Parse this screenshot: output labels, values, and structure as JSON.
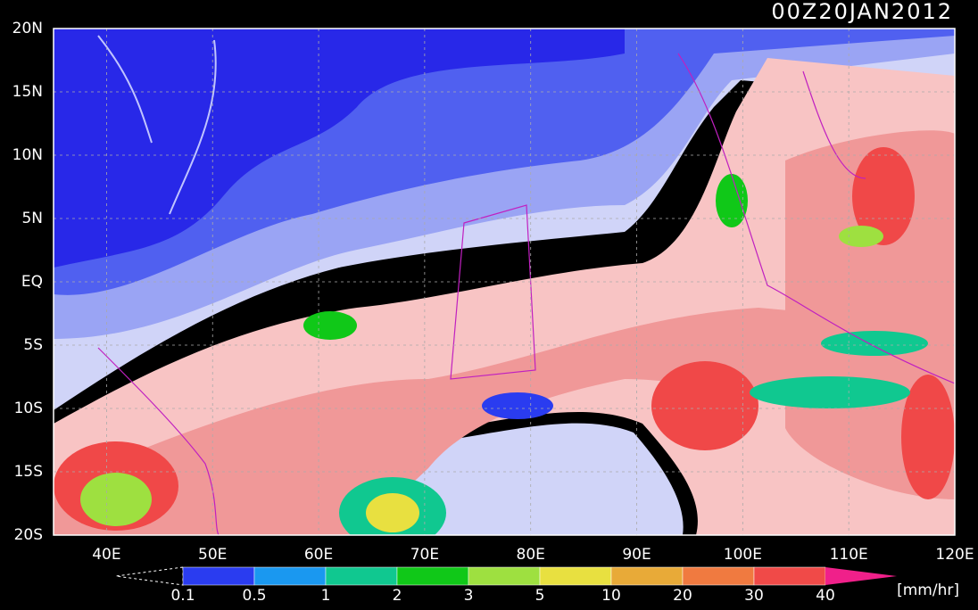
{
  "title": "00Z20JAN2012",
  "lat_labels": [
    "20N",
    "15N",
    "10N",
    "5N",
    "EQ",
    "5S",
    "10S",
    "15S",
    "20S"
  ],
  "lon_labels": [
    "40E",
    "50E",
    "60E",
    "70E",
    "80E",
    "90E",
    "100E",
    "110E",
    "120E"
  ],
  "colorbar": {
    "levels": [
      0.1,
      0.5,
      1,
      2,
      3,
      5,
      10,
      20,
      30,
      40
    ],
    "colors": [
      "#2a3cf0",
      "#1a98f0",
      "#10c890",
      "#10c818",
      "#9ee040",
      "#e8e040",
      "#e8aa38",
      "#f07a40",
      "#f04a48",
      "#f0208a"
    ],
    "unit": "[mm/hr]"
  }
}
